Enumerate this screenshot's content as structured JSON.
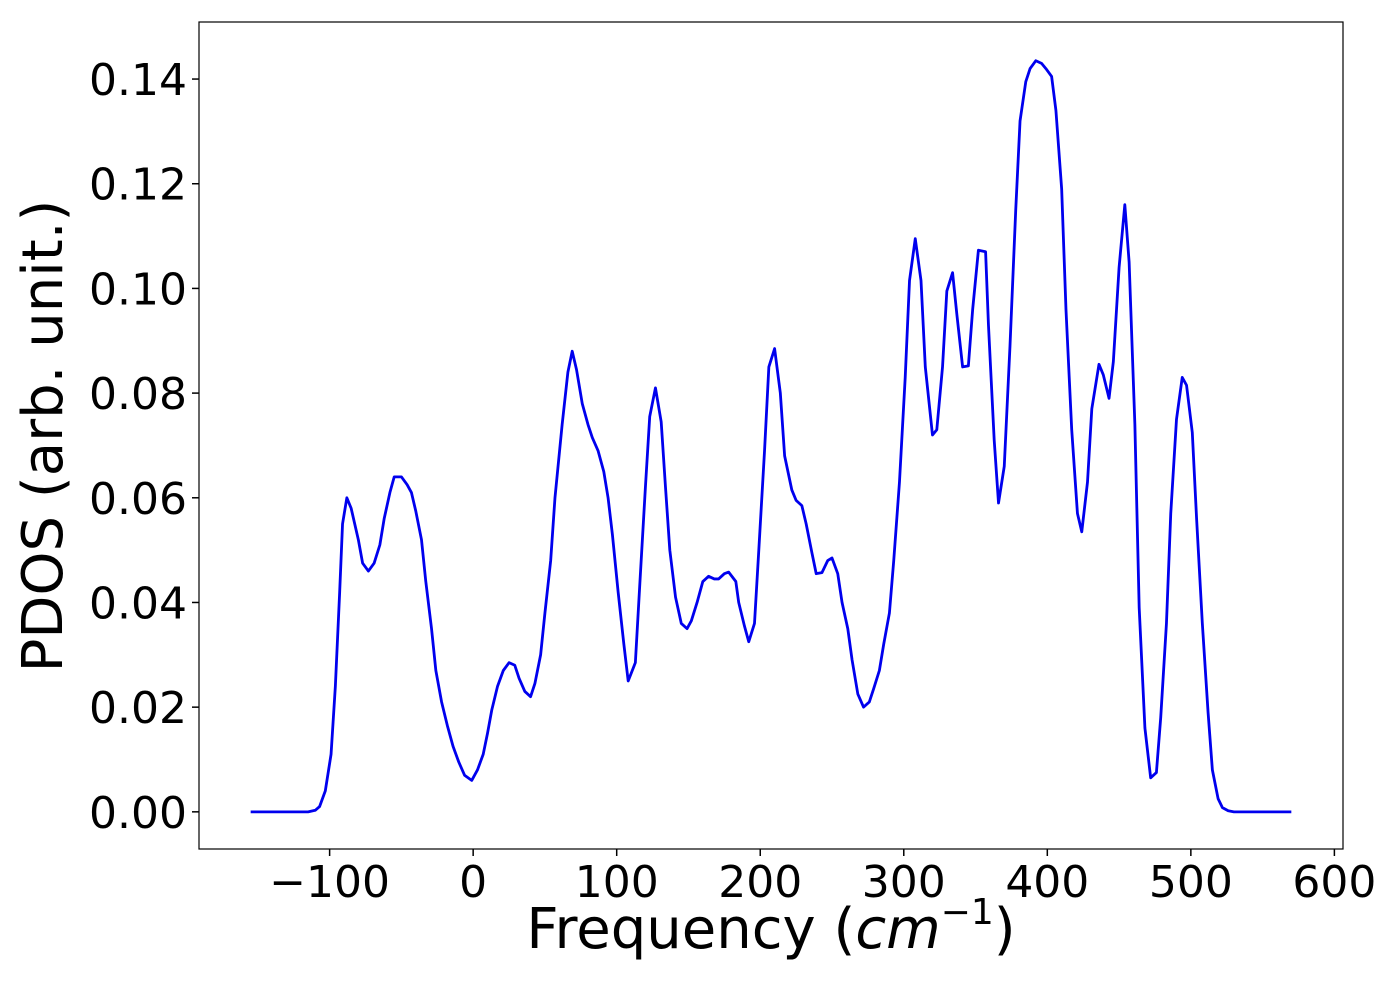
{
  "chart_data": {
    "type": "line",
    "x_label_parts": [
      "Frequency (",
      "cm",
      "−1",
      ")"
    ],
    "y_label": "PDOS (arb. unit.)",
    "xlim": [
      -191,
      606
    ],
    "ylim": [
      -0.0071,
      0.1509
    ],
    "xticks": [
      {
        "value": -100,
        "label": "−100"
      },
      0,
      100,
      200,
      300,
      400,
      500,
      600
    ],
    "yticks": [
      {
        "value": 0,
        "label": "0.00"
      },
      {
        "value": 0.02,
        "label": "0.02"
      },
      {
        "value": 0.04,
        "label": "0.04"
      },
      {
        "value": 0.06,
        "label": "0.06"
      },
      {
        "value": 0.08,
        "label": "0.08"
      },
      {
        "value": 0.1,
        "label": "0.10"
      },
      {
        "value": 0.12,
        "label": "0.12"
      },
      {
        "value": 0.14,
        "label": "0.14"
      }
    ],
    "grid": false,
    "series": [
      {
        "color": "#0000ee",
        "x": [
          -155,
          -115,
          -110,
          -107,
          -103,
          -99,
          -96,
          -93,
          -91,
          -88,
          -85,
          -80,
          -77,
          -73,
          -69,
          -65,
          -62,
          -58,
          -55,
          -50,
          -46,
          -43,
          -40,
          -36,
          -33,
          -29,
          -26,
          -22,
          -18,
          -14,
          -10,
          -6,
          -1,
          3,
          7,
          10,
          13,
          17,
          21,
          25,
          29,
          32,
          36,
          40,
          43,
          47,
          50,
          54,
          57,
          62,
          66,
          69,
          72,
          76,
          80,
          83,
          87,
          91,
          94,
          97,
          101,
          105,
          108,
          113,
          116,
          120,
          123,
          127,
          131,
          134,
          137,
          141,
          145,
          149,
          152,
          156,
          160,
          164,
          168,
          171,
          175,
          178,
          183,
          185,
          189,
          192,
          196,
          199,
          203,
          206,
          210,
          214,
          217,
          222,
          225,
          229,
          232,
          236,
          239,
          243,
          247,
          250,
          254,
          257,
          261,
          264,
          268,
          272,
          276,
          279,
          283,
          286,
          290,
          293,
          297,
          301,
          304,
          308,
          312,
          315,
          320,
          323,
          327,
          330,
          334,
          337,
          341,
          345,
          348,
          352,
          357,
          359,
          363,
          366,
          370,
          374,
          378,
          381,
          385,
          388,
          392,
          396,
          399,
          403,
          406,
          410,
          413,
          417,
          421,
          424,
          428,
          431,
          436,
          439,
          443,
          446,
          450,
          454,
          457,
          461,
          464,
          468,
          472,
          476,
          479,
          483,
          486,
          490,
          494,
          497,
          501,
          504,
          508,
          512,
          515,
          519,
          522,
          526,
          530,
          570
        ],
        "values": [
          0,
          0,
          0.0003,
          0.001,
          0.004,
          0.011,
          0.024,
          0.042,
          0.055,
          0.06,
          0.058,
          0.052,
          0.0475,
          0.046,
          0.0475,
          0.051,
          0.056,
          0.061,
          0.064,
          0.064,
          0.0625,
          0.061,
          0.0575,
          0.052,
          0.044,
          0.035,
          0.027,
          0.021,
          0.0165,
          0.0125,
          0.0095,
          0.007,
          0.006,
          0.008,
          0.011,
          0.015,
          0.0195,
          0.024,
          0.027,
          0.0285,
          0.028,
          0.0255,
          0.023,
          0.022,
          0.0245,
          0.03,
          0.038,
          0.048,
          0.06,
          0.074,
          0.084,
          0.088,
          0.0845,
          0.078,
          0.074,
          0.0715,
          0.069,
          0.065,
          0.06,
          0.053,
          0.042,
          0.032,
          0.025,
          0.0285,
          0.043,
          0.062,
          0.0755,
          0.081,
          0.0745,
          0.062,
          0.05,
          0.041,
          0.036,
          0.035,
          0.0365,
          0.04,
          0.044,
          0.045,
          0.0445,
          0.0445,
          0.0455,
          0.0458,
          0.044,
          0.04,
          0.0355,
          0.0325,
          0.036,
          0.05,
          0.069,
          0.085,
          0.0885,
          0.08,
          0.068,
          0.0615,
          0.0595,
          0.0585,
          0.055,
          0.0495,
          0.0455,
          0.0457,
          0.048,
          0.0485,
          0.0455,
          0.04,
          0.035,
          0.029,
          0.0225,
          0.02,
          0.021,
          0.0235,
          0.027,
          0.032,
          0.038,
          0.048,
          0.063,
          0.083,
          0.1015,
          0.1095,
          0.1015,
          0.085,
          0.072,
          0.073,
          0.085,
          0.0995,
          0.103,
          0.095,
          0.085,
          0.0852,
          0.096,
          0.1073,
          0.107,
          0.093,
          0.071,
          0.059,
          0.066,
          0.089,
          0.115,
          0.132,
          0.1395,
          0.142,
          0.1435,
          0.143,
          0.142,
          0.1405,
          0.134,
          0.119,
          0.096,
          0.073,
          0.057,
          0.0535,
          0.063,
          0.077,
          0.0855,
          0.0835,
          0.079,
          0.086,
          0.104,
          0.116,
          0.105,
          0.074,
          0.039,
          0.016,
          0.0065,
          0.0075,
          0.018,
          0.036,
          0.057,
          0.075,
          0.083,
          0.0815,
          0.0725,
          0.056,
          0.036,
          0.019,
          0.008,
          0.0025,
          0.0008,
          0.0002,
          0,
          0
        ]
      }
    ]
  }
}
